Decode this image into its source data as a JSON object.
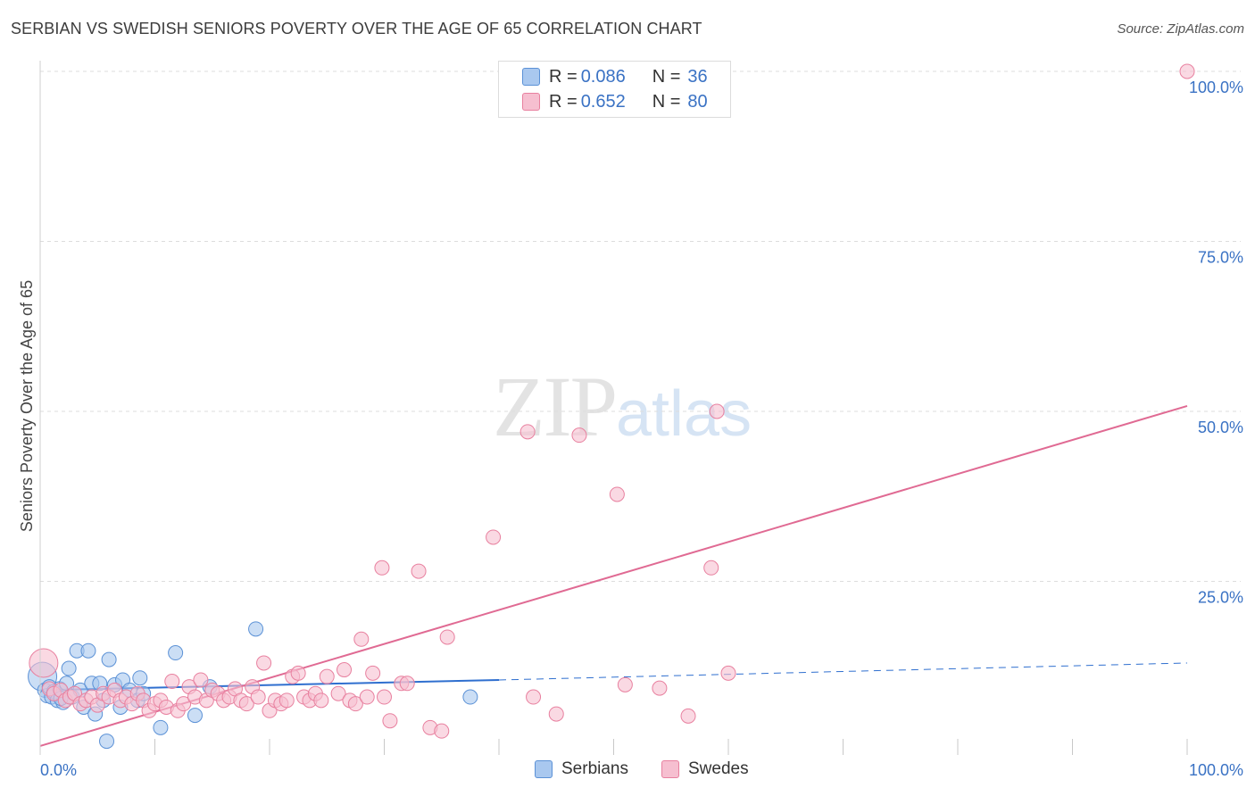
{
  "header": {
    "title": "SERBIAN VS SWEDISH SENIORS POVERTY OVER THE AGE OF 65 CORRELATION CHART",
    "source": "Source: ZipAtlas.com"
  },
  "watermark": {
    "zip": "ZIP",
    "atlas": "atlas"
  },
  "legend": {
    "rows": [
      {
        "r_label": "R = ",
        "r_value": "0.086",
        "n_label": "N = ",
        "n_value": "36"
      },
      {
        "r_label": "R = ",
        "r_value": "0.652",
        "n_label": "N = ",
        "n_value": "80"
      }
    ]
  },
  "bottom_legend": {
    "serbians": "Serbians",
    "swedes": "Swedes"
  },
  "colors": {
    "serbians_fill": "#a9c8ef",
    "serbians_stroke": "#5b91d6",
    "serbians_line": "#2f6fcf",
    "swedes_fill": "#f6bfd0",
    "swedes_stroke": "#e8809f",
    "swedes_line": "#e06a93",
    "tick_label": "#3a72c4",
    "grid": "#dddddd"
  },
  "chart_data": {
    "type": "scatter",
    "title": "SERBIAN VS SWEDISH SENIORS POVERTY OVER THE AGE OF 65 CORRELATION CHART",
    "xlabel": "",
    "ylabel": "Seniors Poverty Over the Age of 65",
    "xlim": [
      0,
      100
    ],
    "ylim": [
      0,
      100
    ],
    "x_tick_labels": [
      "0.0%",
      "100.0%"
    ],
    "y_tick_labels": [
      "25.0%",
      "50.0%",
      "75.0%",
      "100.0%"
    ],
    "y_ticks": [
      25,
      50,
      75,
      100
    ],
    "grid": true,
    "legend_position": "top-center",
    "series": [
      {
        "name": "Serbians",
        "r": 0.086,
        "n": 36,
        "trend": {
          "x": [
            0,
            40
          ],
          "y": [
            9.0,
            10.5
          ],
          "dashed_to": [
            100,
            13.0
          ]
        },
        "points": [
          [
            0.2,
            11.0
          ],
          [
            0.4,
            9.0
          ],
          [
            0.6,
            8.2
          ],
          [
            0.8,
            9.5
          ],
          [
            1.0,
            8.0
          ],
          [
            1.2,
            8.8
          ],
          [
            1.5,
            7.5
          ],
          [
            1.7,
            9.2
          ],
          [
            2.0,
            7.2
          ],
          [
            2.3,
            10.0
          ],
          [
            2.5,
            12.2
          ],
          [
            2.8,
            8.0
          ],
          [
            3.2,
            14.8
          ],
          [
            3.5,
            9.0
          ],
          [
            3.8,
            6.5
          ],
          [
            4.2,
            14.8
          ],
          [
            4.5,
            10.0
          ],
          [
            4.8,
            5.5
          ],
          [
            5.2,
            10.0
          ],
          [
            5.5,
            7.5
          ],
          [
            6.0,
            13.5
          ],
          [
            6.5,
            9.8
          ],
          [
            7.0,
            6.5
          ],
          [
            7.2,
            10.5
          ],
          [
            7.8,
            9.0
          ],
          [
            8.5,
            7.5
          ],
          [
            8.7,
            10.8
          ],
          [
            10.5,
            3.5
          ],
          [
            11.8,
            14.5
          ],
          [
            13.5,
            5.3
          ],
          [
            14.8,
            9.5
          ],
          [
            18.8,
            18.0
          ],
          [
            9.0,
            8.5
          ],
          [
            5.8,
            1.5
          ],
          [
            37.5,
            8.0
          ],
          [
            1.8,
            7.8
          ]
        ]
      },
      {
        "name": "Swedes",
        "r": 0.652,
        "n": 80,
        "trend": {
          "x": [
            0,
            100
          ],
          "y": [
            0.8,
            50.8
          ]
        },
        "points": [
          [
            0.3,
            13.0
          ],
          [
            0.8,
            9.2
          ],
          [
            1.2,
            8.5
          ],
          [
            1.8,
            9.0
          ],
          [
            2.2,
            7.5
          ],
          [
            2.6,
            8.0
          ],
          [
            3.0,
            8.5
          ],
          [
            3.5,
            7.0
          ],
          [
            4.0,
            7.5
          ],
          [
            4.5,
            8.0
          ],
          [
            5.0,
            6.8
          ],
          [
            5.5,
            8.5
          ],
          [
            6.0,
            8.0
          ],
          [
            6.5,
            9.0
          ],
          [
            7.0,
            7.5
          ],
          [
            7.5,
            8.0
          ],
          [
            8.0,
            7.0
          ],
          [
            8.5,
            8.5
          ],
          [
            9.0,
            7.5
          ],
          [
            9.5,
            6.0
          ],
          [
            10.0,
            7.0
          ],
          [
            10.5,
            7.5
          ],
          [
            11.0,
            6.5
          ],
          [
            11.5,
            10.3
          ],
          [
            12.0,
            6.0
          ],
          [
            12.5,
            7.0
          ],
          [
            13.0,
            9.5
          ],
          [
            13.5,
            8.0
          ],
          [
            14.0,
            10.5
          ],
          [
            14.5,
            7.5
          ],
          [
            15.0,
            9.0
          ],
          [
            15.5,
            8.5
          ],
          [
            16.0,
            7.5
          ],
          [
            16.5,
            8.0
          ],
          [
            17.0,
            9.2
          ],
          [
            17.5,
            7.5
          ],
          [
            18.0,
            7.0
          ],
          [
            18.5,
            9.5
          ],
          [
            19.0,
            8.0
          ],
          [
            19.5,
            13.0
          ],
          [
            20.0,
            6.0
          ],
          [
            20.5,
            7.5
          ],
          [
            21.0,
            7.0
          ],
          [
            21.5,
            7.5
          ],
          [
            22.0,
            11.0
          ],
          [
            22.5,
            11.5
          ],
          [
            23.0,
            8.0
          ],
          [
            23.5,
            7.5
          ],
          [
            24.0,
            8.5
          ],
          [
            24.5,
            7.5
          ],
          [
            25.0,
            11.0
          ],
          [
            26.0,
            8.5
          ],
          [
            26.5,
            12.0
          ],
          [
            27.0,
            7.5
          ],
          [
            27.5,
            7.0
          ],
          [
            28.0,
            16.5
          ],
          [
            28.5,
            8.0
          ],
          [
            29.0,
            11.5
          ],
          [
            29.8,
            27.0
          ],
          [
            30.0,
            8.0
          ],
          [
            30.5,
            4.5
          ],
          [
            31.5,
            10.0
          ],
          [
            32.0,
            10.0
          ],
          [
            33.0,
            26.5
          ],
          [
            34.0,
            3.5
          ],
          [
            35.0,
            3.0
          ],
          [
            35.5,
            16.8
          ],
          [
            39.5,
            31.5
          ],
          [
            42.5,
            47.0
          ],
          [
            43.0,
            8.0
          ],
          [
            45.0,
            5.5
          ],
          [
            47.0,
            46.5
          ],
          [
            50.3,
            37.8
          ],
          [
            51.0,
            9.8
          ],
          [
            54.0,
            9.3
          ],
          [
            56.5,
            5.2
          ],
          [
            58.5,
            27.0
          ],
          [
            59.0,
            50.0
          ],
          [
            60.0,
            11.5
          ],
          [
            100.0,
            100.0
          ]
        ]
      }
    ]
  }
}
